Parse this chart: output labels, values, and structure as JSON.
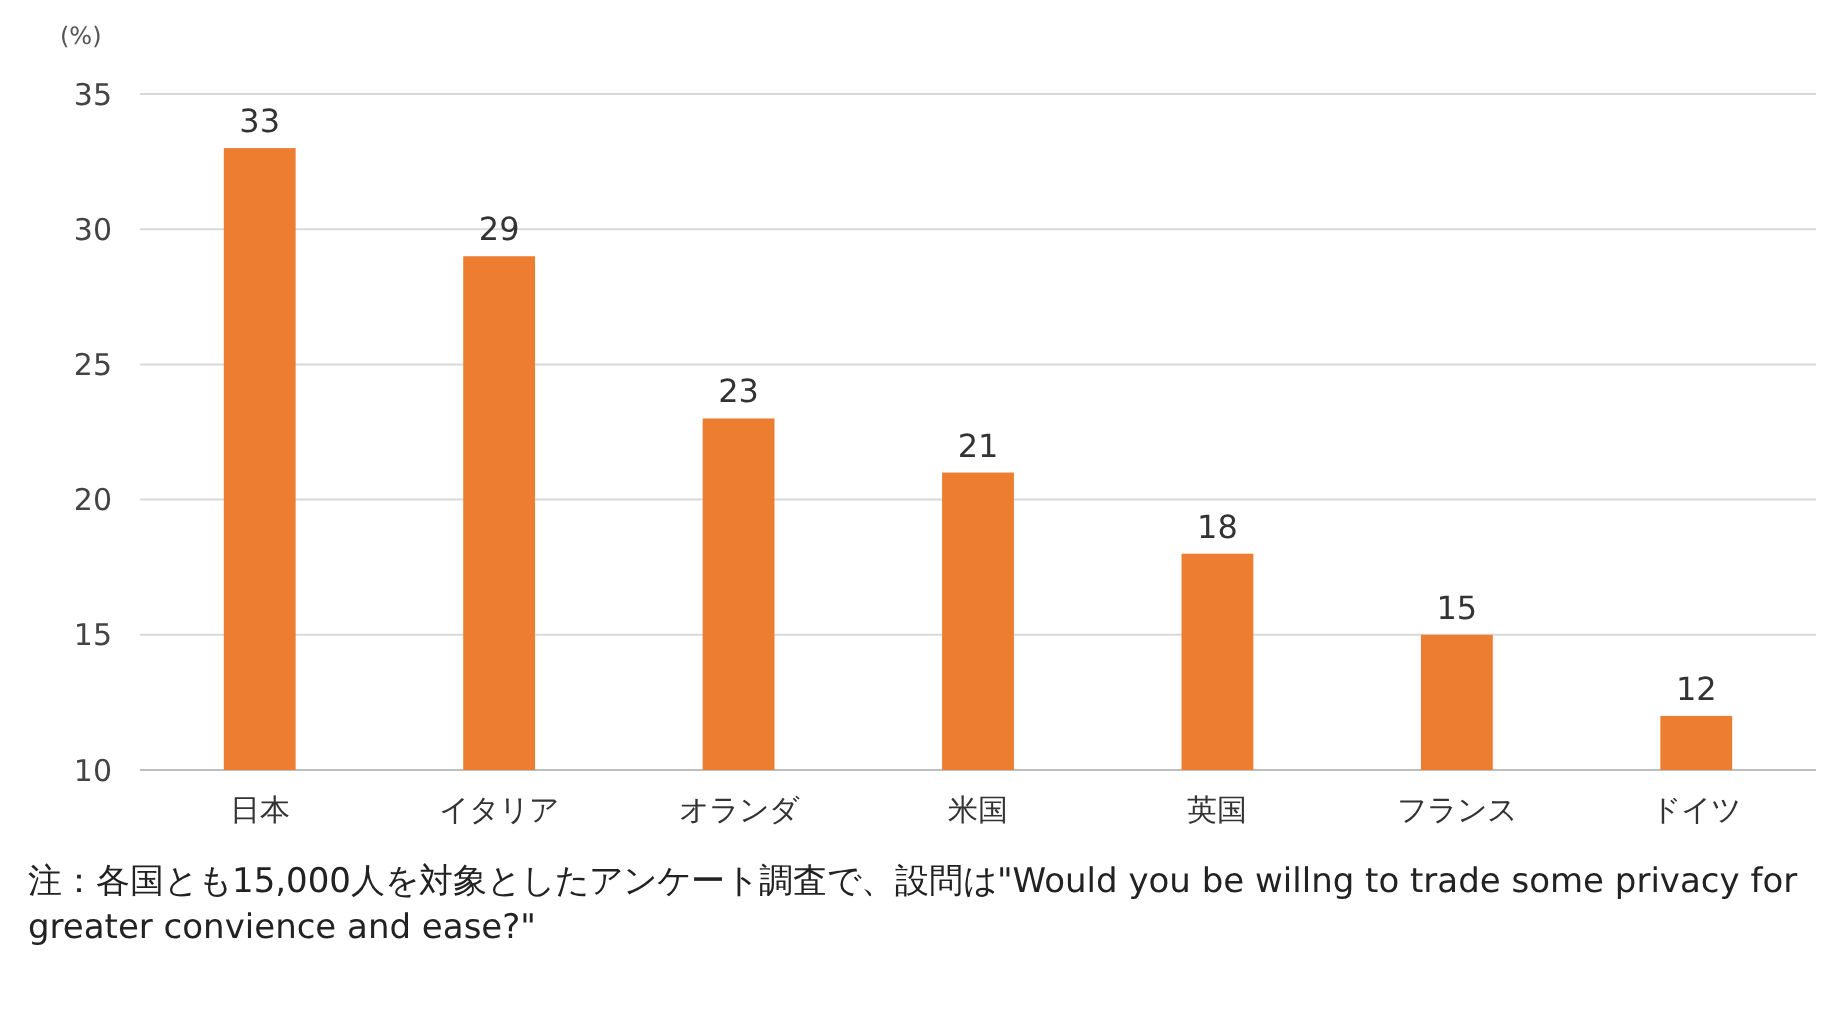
{
  "chart_data": {
    "type": "bar",
    "ylabel": "(%)",
    "categories": [
      "日本",
      "イタリア",
      "オランダ",
      "米国",
      "英国",
      "フランス",
      "ドイツ"
    ],
    "values": [
      33,
      29,
      23,
      21,
      18,
      15,
      12
    ],
    "color": "#ed7d31",
    "ylim": [
      10,
      35
    ],
    "yticks": [
      10,
      15,
      20,
      25,
      30,
      35
    ],
    "grid": "y",
    "data_labels": true,
    "annotations": [
      "注：各国とも15,000人を対象としたアンケート調査で、設問は\"Would you be willng to trade some privacy for greater convience and ease?\""
    ]
  }
}
